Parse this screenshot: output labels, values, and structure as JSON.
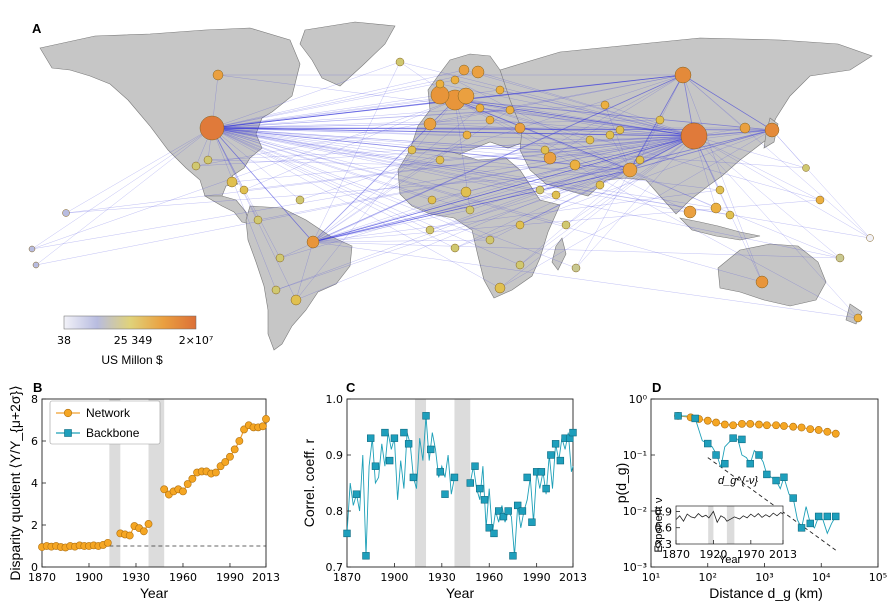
{
  "panels": {
    "a": "A",
    "b": "B",
    "c": "C",
    "d": "D"
  },
  "colors": {
    "network": "#f0a030",
    "backbone": "#1ea0b8",
    "land": "#c6c6c6",
    "edge": "#3c3cdc",
    "shade": "#dcdcdc"
  },
  "map": {
    "colorbar_ticks": [
      "38",
      "25 349",
      "2×10⁷"
    ],
    "colorbar_label": "US Millon $",
    "colorbar_colors": [
      "#f2f2f8",
      "#b8bce0",
      "#e0d27a",
      "#eaa040",
      "#dc7038"
    ]
  },
  "chart_data": [
    {
      "panel": "B",
      "type": "line",
      "title": "",
      "xlabel": "Year",
      "ylabel": "Disparity quotient ⟨Y/Y_{μ+2σ}⟩",
      "xlim": [
        1870,
        2013
      ],
      "ylim": [
        0,
        8
      ],
      "xticks": [
        "1870",
        "1900",
        "1930",
        "1960",
        "1990",
        "2013"
      ],
      "yticks": [
        "0",
        "2",
        "4",
        "6",
        "8"
      ],
      "shaded_years": [
        [
          1913,
          1920
        ],
        [
          1938,
          1948
        ]
      ],
      "reference_line": 1.0,
      "legend": [
        "Network",
        "Backbone"
      ],
      "series": [
        {
          "name": "Network",
          "x": [
            1870,
            1873,
            1876,
            1879,
            1882,
            1885,
            1888,
            1891,
            1894,
            1897,
            1900,
            1903,
            1906,
            1909,
            1912,
            1920,
            1923,
            1926,
            1929,
            1932,
            1935,
            1938,
            1948,
            1951,
            1954,
            1957,
            1960,
            1963,
            1966,
            1969,
            1972,
            1975,
            1978,
            1981,
            1984,
            1987,
            1990,
            1993,
            1996,
            1999,
            2002,
            2005,
            2008,
            2011,
            2013
          ],
          "y": [
            0.95,
            1.0,
            0.97,
            1.0,
            0.95,
            0.93,
            1.0,
            0.97,
            1.03,
            1.0,
            1.0,
            1.03,
            1.0,
            1.05,
            1.15,
            1.6,
            1.55,
            1.5,
            1.95,
            1.85,
            1.7,
            2.05,
            3.7,
            3.45,
            3.6,
            3.7,
            3.6,
            3.95,
            4.2,
            4.5,
            4.55,
            4.55,
            4.45,
            4.5,
            4.8,
            5.0,
            5.25,
            5.6,
            6.0,
            6.55,
            6.75,
            6.65,
            6.65,
            6.7,
            7.05
          ]
        }
      ]
    },
    {
      "panel": "C",
      "type": "line",
      "xlabel": "Year",
      "ylabel": "Correl. coeff. r",
      "xlim": [
        1870,
        2013
      ],
      "ylim": [
        0.7,
        1.0
      ],
      "xticks": [
        "1870",
        "1900",
        "1930",
        "1960",
        "1990",
        "2013"
      ],
      "yticks": [
        "0.7",
        "0.8",
        "0.9",
        "1.0"
      ],
      "shaded_years": [
        [
          1913,
          1920
        ],
        [
          1938,
          1948
        ]
      ],
      "series": [
        {
          "name": "Backbone (annual)",
          "x": [
            1870,
            1872,
            1874,
            1876,
            1878,
            1880,
            1882,
            1884,
            1886,
            1888,
            1890,
            1892,
            1894,
            1896,
            1898,
            1900,
            1902,
            1904,
            1906,
            1908,
            1910,
            1912,
            1914,
            1916,
            1918,
            1920,
            1922,
            1924,
            1926,
            1928,
            1930,
            1932,
            1934,
            1936,
            1938,
            1948,
            1950,
            1952,
            1954,
            1956,
            1958,
            1960,
            1962,
            1964,
            1966,
            1968,
            1970,
            1972,
            1974,
            1976,
            1978,
            1980,
            1982,
            1984,
            1986,
            1988,
            1990,
            1992,
            1994,
            1996,
            1998,
            2000,
            2002,
            2004,
            2006,
            2008,
            2010,
            2012,
            2013
          ],
          "y": [
            0.76,
            0.85,
            0.81,
            0.83,
            0.8,
            0.9,
            0.72,
            0.88,
            0.93,
            0.85,
            0.86,
            0.92,
            0.88,
            0.94,
            0.91,
            0.93,
            0.82,
            0.89,
            0.84,
            0.94,
            0.92,
            0.86,
            0.84,
            0.93,
            0.89,
            0.97,
            0.89,
            0.94,
            0.91,
            0.86,
            0.88,
            0.86,
            0.9,
            0.83,
            0.86,
            0.85,
            0.88,
            0.84,
            0.82,
            0.88,
            0.77,
            0.84,
            0.76,
            0.8,
            0.78,
            0.81,
            0.78,
            0.8,
            0.79,
            0.72,
            0.81,
            0.77,
            0.8,
            0.82,
            0.86,
            0.78,
            0.87,
            0.84,
            0.87,
            0.83,
            0.9,
            0.84,
            0.92,
            0.89,
            0.93,
            0.91,
            0.94,
            0.87,
            0.88
          ]
        },
        {
          "name": "Backbone (markers)",
          "x": [
            1870,
            1876,
            1882,
            1885,
            1888,
            1894,
            1897,
            1900,
            1906,
            1909,
            1912,
            1920,
            1923,
            1929,
            1932,
            1938,
            1948,
            1951,
            1954,
            1957,
            1960,
            1963,
            1966,
            1969,
            1972,
            1975,
            1978,
            1981,
            1984,
            1987,
            1990,
            1993,
            1996,
            1999,
            2002,
            2005,
            2008,
            2011,
            2013
          ],
          "y": [
            0.76,
            0.83,
            0.72,
            0.93,
            0.88,
            0.94,
            0.89,
            0.93,
            0.94,
            0.92,
            0.86,
            0.97,
            0.91,
            0.87,
            0.83,
            0.86,
            0.85,
            0.88,
            0.84,
            0.82,
            0.77,
            0.76,
            0.8,
            0.79,
            0.8,
            0.72,
            0.81,
            0.8,
            0.86,
            0.78,
            0.87,
            0.87,
            0.84,
            0.9,
            0.92,
            0.89,
            0.93,
            0.93,
            0.94
          ]
        }
      ]
    },
    {
      "panel": "D",
      "type": "line",
      "xlabel": "Distance d_g (km)",
      "ylabel": "p(d_g)",
      "xscale": "log",
      "yscale": "log",
      "xlim": [
        10,
        100000
      ],
      "ylim": [
        0.001,
        1
      ],
      "xticks": [
        "10¹",
        "10²",
        "10³",
        "10⁴",
        "10⁵"
      ],
      "yticks": [
        "10⁻³",
        "10⁻²",
        "10⁻¹",
        "10⁰"
      ],
      "annotation": "d_g^{-ν}",
      "series": [
        {
          "name": "Network",
          "x": [
            30,
            50,
            70,
            100,
            140,
            200,
            280,
            400,
            560,
            800,
            1100,
            1600,
            2200,
            3200,
            4500,
            6400,
            9000,
            12800,
            18000
          ],
          "y": [
            0.5,
            0.47,
            0.44,
            0.41,
            0.38,
            0.35,
            0.34,
            0.36,
            0.36,
            0.35,
            0.34,
            0.34,
            0.33,
            0.32,
            0.31,
            0.29,
            0.28,
            0.26,
            0.24
          ]
        },
        {
          "name": "Backbone",
          "x": [
            30,
            42,
            60,
            80,
            100,
            120,
            145,
            170,
            200,
            240,
            290,
            340,
            400,
            480,
            560,
            660,
            800,
            950,
            1100,
            1320,
            1600,
            1900,
            2200,
            2700,
            3200,
            3800,
            4500,
            5400,
            6400,
            7600,
            9000,
            10700,
            12800,
            15200,
            18000
          ],
          "y": [
            0.5,
            0.5,
            0.45,
            0.18,
            0.16,
            0.14,
            0.1,
            0.06,
            0.14,
            0.17,
            0.2,
            0.19,
            0.1,
            0.09,
            0.07,
            0.12,
            0.1,
            0.075,
            0.045,
            0.04,
            0.035,
            0.025,
            0.04,
            0.02,
            0.017,
            0.007,
            0.005,
            0.012,
            0.006,
            0.005,
            0.008,
            0.007,
            0.004,
            0.006,
            0.008
          ]
        },
        {
          "name": "Backbone (markers)",
          "x": [
            30,
            60,
            100,
            140,
            200,
            280,
            400,
            560,
            800,
            1100,
            1600,
            2200,
            3200,
            4500,
            6400,
            9000,
            12800,
            18000
          ],
          "y": [
            0.5,
            0.45,
            0.16,
            0.1,
            0.07,
            0.2,
            0.19,
            0.07,
            0.1,
            0.045,
            0.035,
            0.04,
            0.017,
            0.005,
            0.006,
            0.008,
            0.008,
            0.008
          ]
        },
        {
          "name": "Power-law guide",
          "style": "dashed",
          "x": [
            100,
            18000
          ],
          "y": [
            0.09,
            0.002
          ]
        }
      ],
      "inset": {
        "xlabel": "Year",
        "ylabel": "Exponent ν",
        "xlim": [
          1870,
          2013
        ],
        "ylim": [
          0.3,
          1.0
        ],
        "xticks": [
          "1870",
          "1920",
          "1970",
          "2013"
        ],
        "yticks": [
          "0.3",
          "0.6",
          "0.9"
        ],
        "shaded_years": [
          [
            1913,
            1920
          ],
          [
            1938,
            1948
          ]
        ],
        "x": [
          1870,
          1875,
          1880,
          1885,
          1890,
          1895,
          1900,
          1905,
          1910,
          1914,
          1920,
          1925,
          1930,
          1935,
          1938,
          1948,
          1955,
          1960,
          1965,
          1970,
          1975,
          1980,
          1985,
          1990,
          1995,
          2000,
          2005,
          2010,
          2013
        ],
        "y": [
          0.75,
          0.82,
          0.72,
          0.85,
          0.8,
          0.78,
          0.86,
          0.8,
          0.83,
          0.78,
          0.9,
          0.7,
          0.82,
          0.78,
          0.72,
          0.8,
          0.76,
          0.82,
          0.78,
          0.85,
          0.8,
          0.86,
          0.79,
          0.84,
          0.8,
          0.87,
          0.82,
          0.88,
          0.85
        ]
      }
    }
  ]
}
